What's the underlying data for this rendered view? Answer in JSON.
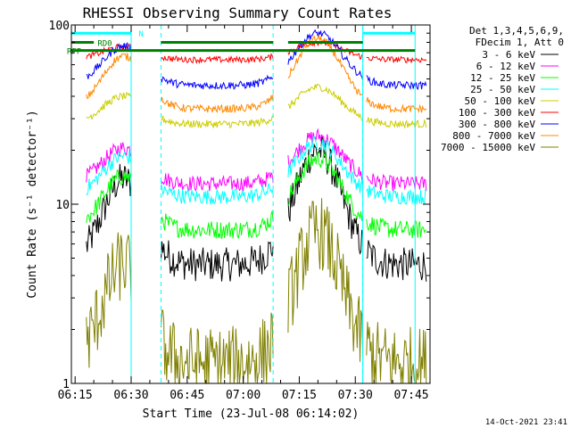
{
  "chart_data": {
    "type": "line",
    "title": "RHESSI Observing Summary Count Rates",
    "xlabel": "Start Time (23-Jul-08 06:14:02)",
    "ylabel": "Count Rate (s⁻¹ detector⁻¹)",
    "x_ticks": [
      "06:15",
      "06:30",
      "06:45",
      "07:00",
      "07:15",
      "07:30",
      "07:45"
    ],
    "x_tick_minutes": [
      1,
      16,
      31,
      46,
      61,
      76,
      91
    ],
    "x_range_minutes": [
      0,
      96
    ],
    "y_scale": "log",
    "ylim": [
      1,
      100
    ],
    "y_ticks": [
      "1",
      "10",
      "100"
    ],
    "legend_header": [
      "Det 1,3,4,5,6,9,",
      "FDecim 1, Att 0"
    ],
    "legend_position": "top-right",
    "timestamp": "14-Oct-2021 23:41",
    "flags": [
      {
        "label": "N",
        "color": "#00ffff"
      },
      {
        "label": "RD0",
        "color": "#008000"
      },
      {
        "label": "RFP",
        "color": "#008000"
      }
    ],
    "night_lines_minutes": [
      0,
      16,
      78,
      92
    ],
    "saa_lines_minutes": [
      24,
      54,
      78
    ],
    "series": [
      {
        "name": "3 - 6 keV",
        "color": "#000000",
        "base": 4.6,
        "peak": 20,
        "noise": 0.22
      },
      {
        "name": "6 - 12 keV",
        "color": "#ff00ff",
        "base": 13,
        "peak": 24,
        "noise": 0.1
      },
      {
        "name": "12 - 25 keV",
        "color": "#00ff00",
        "base": 7.2,
        "peak": 18,
        "noise": 0.12
      },
      {
        "name": "25 - 50 keV",
        "color": "#00ffff",
        "base": 11,
        "peak": 22,
        "noise": 0.1
      },
      {
        "name": "50 - 100 keV",
        "color": "#cccc00",
        "base": 28,
        "peak": 45,
        "noise": 0.05
      },
      {
        "name": "100 - 300 keV",
        "color": "#ff0000",
        "base": 64,
        "peak": 80,
        "noise": 0.04
      },
      {
        "name": "300 - 800 keV",
        "color": "#0000ff",
        "base": 46,
        "peak": 90,
        "noise": 0.05
      },
      {
        "name": "800 - 7000 keV",
        "color": "#ff8800",
        "base": 34,
        "peak": 84,
        "noise": 0.05
      },
      {
        "name": "7000 - 15000 keV",
        "color": "#808000",
        "base": 1.3,
        "peak": 7,
        "noise": 0.08
      }
    ]
  }
}
